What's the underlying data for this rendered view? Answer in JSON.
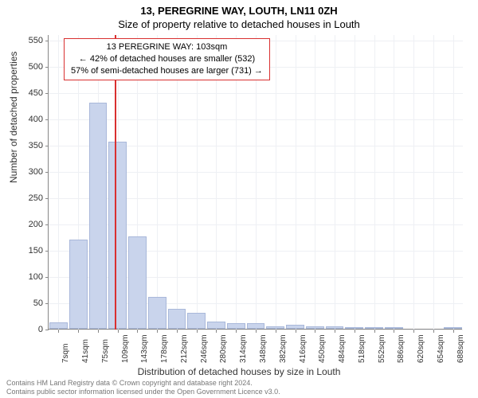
{
  "titles": {
    "main": "13, PEREGRINE WAY, LOUTH, LN11 0ZH",
    "sub": "Size of property relative to detached houses in Louth"
  },
  "axes": {
    "ylabel": "Number of detached properties",
    "xlabel": "Distribution of detached houses by size in Louth",
    "ylim_max": 560,
    "yticks": [
      0,
      50,
      100,
      150,
      200,
      250,
      300,
      350,
      400,
      450,
      500,
      550
    ],
    "xticks": [
      "7sqm",
      "41sqm",
      "75sqm",
      "109sqm",
      "143sqm",
      "178sqm",
      "212sqm",
      "246sqm",
      "280sqm",
      "314sqm",
      "348sqm",
      "382sqm",
      "416sqm",
      "450sqm",
      "484sqm",
      "518sqm",
      "552sqm",
      "586sqm",
      "620sqm",
      "654sqm",
      "688sqm"
    ],
    "xtick_visible": [
      true,
      true,
      true,
      true,
      true,
      true,
      true,
      true,
      true,
      true,
      true,
      true,
      true,
      true,
      true,
      true,
      true,
      true,
      true,
      true,
      true
    ],
    "label_fontsize": 12,
    "tick_fontsize": 11
  },
  "chart": {
    "type": "histogram",
    "background_color": "#ffffff",
    "grid_color": "#eef0f4",
    "bar_color": "#c9d4ec",
    "bar_border_color": "#a9b8da",
    "values": [
      12,
      170,
      430,
      355,
      175,
      60,
      38,
      30,
      14,
      11,
      10,
      5,
      7,
      4,
      4,
      3,
      2,
      2,
      0,
      0,
      2
    ],
    "reference_line": {
      "x_index": 2.85,
      "color": "#d93030",
      "width": 2
    }
  },
  "annotation": {
    "lines": [
      "13 PEREGRINE WAY: 103sqm",
      "← 42% of detached houses are smaller (532)",
      "57% of semi-detached houses are larger (731) →"
    ],
    "border_color": "#d93030",
    "background_color": "#ffffff",
    "fontsize": 11
  },
  "footer": {
    "line1": "Contains HM Land Registry data © Crown copyright and database right 2024.",
    "line2": "Contains public sector information licensed under the Open Government Licence v3.0."
  }
}
